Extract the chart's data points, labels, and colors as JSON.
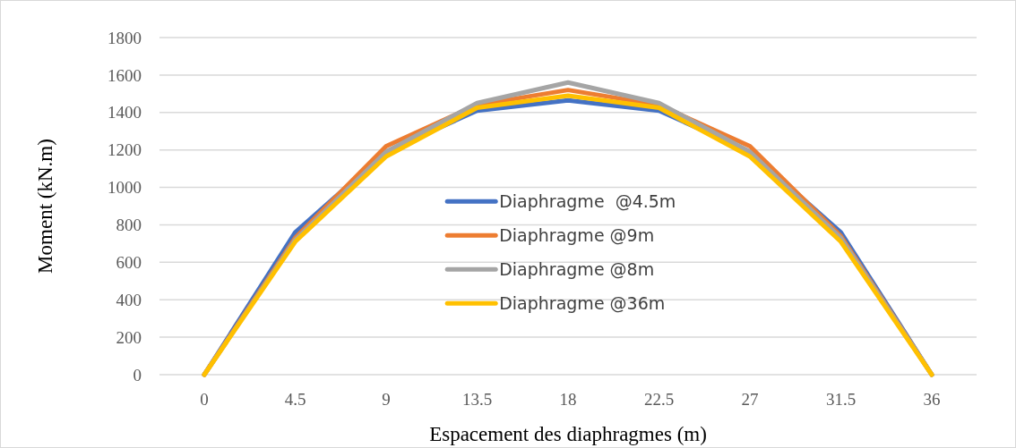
{
  "chart_data": {
    "type": "line",
    "xlabel": "Espacement des diaphragmes (m)",
    "ylabel": "Moment (kN.m)",
    "categories": [
      "0",
      "4.5",
      "9",
      "13.5",
      "18",
      "22.5",
      "27",
      "31.5",
      "36"
    ],
    "series": [
      {
        "name": "Diaphragme  @4.5m",
        "color": "#4472c4",
        "values": [
          0,
          760,
          1190,
          1410,
          1465,
          1410,
          1190,
          760,
          0
        ]
      },
      {
        "name": "Diaphragme @9m",
        "color": "#ed7d31",
        "values": [
          0,
          730,
          1220,
          1440,
          1520,
          1440,
          1220,
          740,
          0
        ]
      },
      {
        "name": "Diaphragme @8m",
        "color": "#a5a5a5",
        "values": [
          0,
          720,
          1190,
          1450,
          1560,
          1450,
          1190,
          730,
          0
        ]
      },
      {
        "name": "Diaphragme @36m",
        "color": "#ffc000",
        "values": [
          0,
          710,
          1165,
          1425,
          1490,
          1425,
          1165,
          710,
          0
        ]
      }
    ],
    "ylim": [
      0,
      1800
    ],
    "yticks": [
      0,
      200,
      400,
      600,
      800,
      1000,
      1200,
      1400,
      1600,
      1800
    ],
    "grid": "y",
    "legend": "center",
    "marker": "none",
    "line_style": "solid"
  }
}
